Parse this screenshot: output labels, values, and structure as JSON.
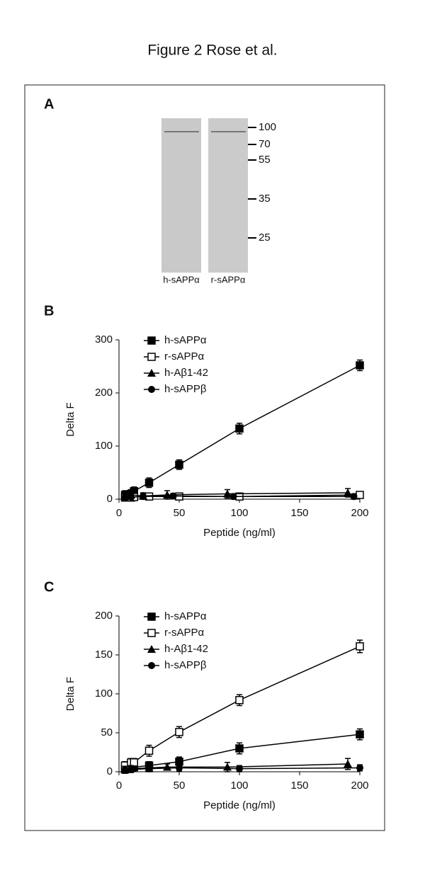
{
  "title": "Figure 2 Rose et al.",
  "panel_a": {
    "label": "A",
    "lanes": [
      "h-sAPPα",
      "r-sAPPα"
    ],
    "markers": [
      100,
      70,
      55,
      35,
      25
    ]
  },
  "chart_data": [
    {
      "type": "line",
      "panel": "B",
      "xlabel": "Peptide (ng/ml)",
      "ylabel": "Delta F",
      "xlim": [
        0,
        200
      ],
      "xticks": [
        0,
        50,
        100,
        150,
        200
      ],
      "ylim": [
        0,
        300
      ],
      "yticks": [
        0,
        100,
        200,
        300
      ],
      "series": [
        {
          "name": "h-sAPPα",
          "marker": "square",
          "color": "#000",
          "x": [
            5,
            10,
            12.5,
            25,
            50,
            100,
            200
          ],
          "values": [
            8,
            10,
            15,
            31,
            65,
            133,
            252
          ],
          "errors": [
            8,
            8,
            8,
            9,
            9,
            10,
            10
          ]
        },
        {
          "name": "r-sAPPα",
          "marker": "open-square",
          "color": "#000",
          "x": [
            5,
            10,
            12.5,
            25,
            50,
            100,
            200
          ],
          "values": [
            3,
            3,
            4,
            5,
            5,
            5,
            8
          ],
          "errors": [
            6,
            6,
            6,
            6,
            6,
            6,
            6
          ]
        },
        {
          "name": "h-Aβ1-42",
          "marker": "triangle",
          "color": "#000",
          "x": [
            5,
            10,
            20,
            40,
            90,
            190
          ],
          "values": [
            5,
            8,
            6,
            8,
            10,
            12
          ],
          "errors": [
            6,
            6,
            6,
            8,
            8,
            8
          ]
        },
        {
          "name": "h-sAPPβ",
          "marker": "circle",
          "color": "#000",
          "x": [
            5,
            10,
            20,
            45,
            95,
            195
          ],
          "values": [
            3,
            4,
            5,
            6,
            5,
            5
          ],
          "errors": [
            5,
            5,
            5,
            5,
            5,
            5
          ]
        }
      ]
    },
    {
      "type": "line",
      "panel": "C",
      "xlabel": "Peptide (ng/ml)",
      "ylabel": "Delta F",
      "xlim": [
        0,
        200
      ],
      "xticks": [
        0,
        50,
        100,
        150,
        200
      ],
      "ylim": [
        0,
        200
      ],
      "yticks": [
        0,
        50,
        100,
        150,
        200
      ],
      "series": [
        {
          "name": "h-sAPPα",
          "marker": "square",
          "color": "#000",
          "x": [
            5,
            10,
            12.5,
            25,
            50,
            100,
            200
          ],
          "values": [
            3,
            5,
            6,
            8,
            13,
            30,
            48
          ],
          "errors": [
            5,
            5,
            5,
            5,
            6,
            7,
            7
          ]
        },
        {
          "name": "r-sAPPα",
          "marker": "open-square",
          "color": "#000",
          "x": [
            5,
            10,
            12.5,
            25,
            50,
            100,
            200
          ],
          "values": [
            8,
            12,
            12,
            27,
            51,
            92,
            161
          ],
          "errors": [
            5,
            5,
            5,
            7,
            7,
            7,
            8
          ]
        },
        {
          "name": "h-Aβ1-42",
          "marker": "triangle",
          "color": "#000",
          "x": [
            5,
            10,
            25,
            40,
            90,
            190
          ],
          "values": [
            3,
            4,
            5,
            6,
            6,
            10
          ],
          "errors": [
            4,
            4,
            4,
            4,
            6,
            7
          ]
        },
        {
          "name": "h-sAPPβ",
          "marker": "circle",
          "color": "#000",
          "x": [
            5,
            10,
            25,
            50,
            100,
            200
          ],
          "values": [
            2,
            3,
            4,
            5,
            4,
            5
          ],
          "errors": [
            4,
            4,
            4,
            4,
            4,
            4
          ]
        }
      ]
    }
  ]
}
